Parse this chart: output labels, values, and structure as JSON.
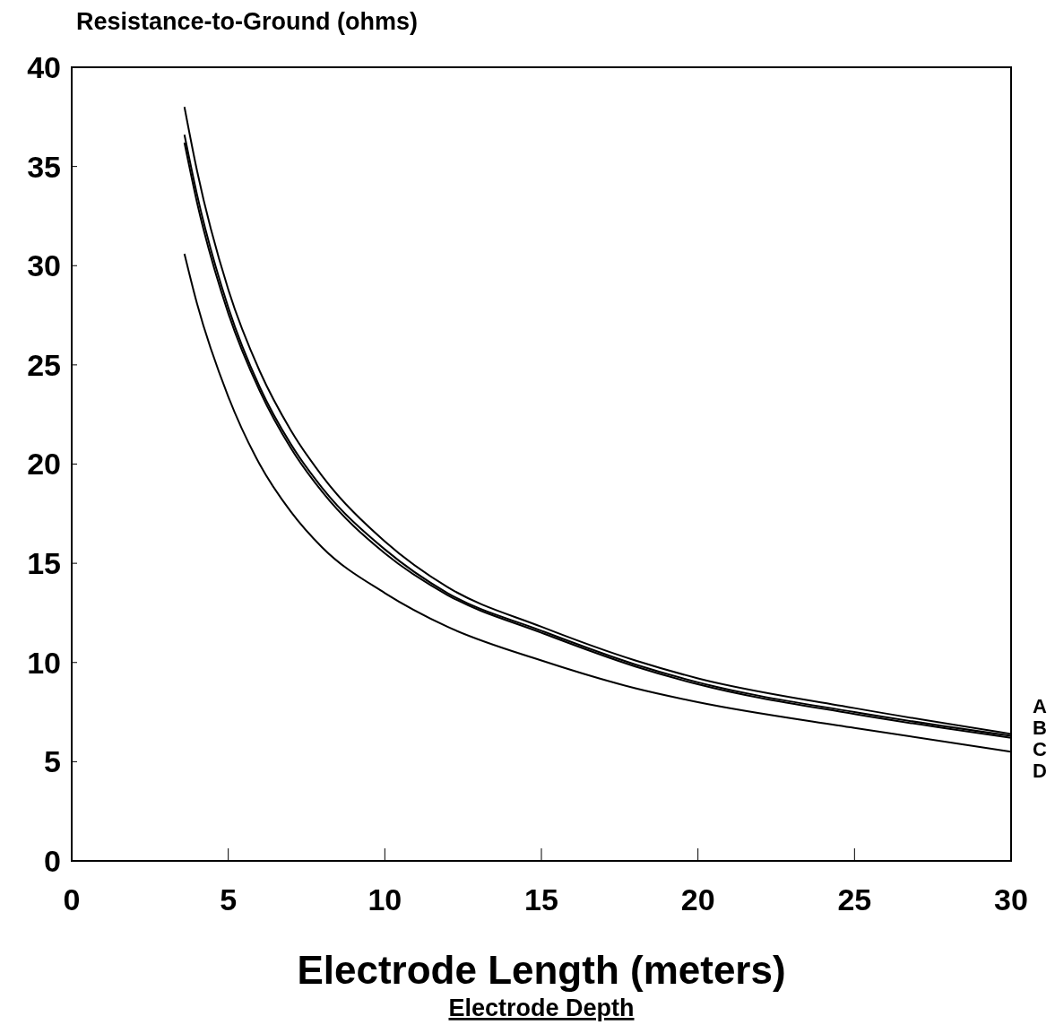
{
  "chart_data": {
    "type": "line",
    "ylabel": "Resistance-to-Ground (ohms)",
    "xlabel": "Electrode Length (meters)",
    "annotations": [
      "Electrode Depth"
    ],
    "x": [
      3.6,
      4,
      5,
      6,
      7,
      8,
      10,
      12,
      15,
      18,
      20,
      25,
      30
    ],
    "series": [
      {
        "name": "A",
        "color": "#000000",
        "values": [
          38,
          34.8,
          28.8,
          24.7,
          21.7,
          19.4,
          16.1,
          13.8,
          11.8,
          10.1,
          9.2,
          7.7,
          6.4
        ]
      },
      {
        "name": "B",
        "color": "#000000",
        "values": [
          36.6,
          33.6,
          27.9,
          23.9,
          21.0,
          18.8,
          15.7,
          13.5,
          11.6,
          9.9,
          9.0,
          7.5,
          6.3
        ]
      },
      {
        "name": "C",
        "color": "#000000",
        "values": [
          36.2,
          33.2,
          27.6,
          23.7,
          20.8,
          18.6,
          15.5,
          13.4,
          11.5,
          9.8,
          8.9,
          7.4,
          6.2
        ]
      },
      {
        "name": "D",
        "color": "#000000",
        "values": [
          30.6,
          28.1,
          23.4,
          20.0,
          17.6,
          15.8,
          13.5,
          11.8,
          10.1,
          8.7,
          8.0,
          6.7,
          5.5
        ]
      }
    ],
    "xlim": [
      0,
      30
    ],
    "xticks": [
      0,
      5,
      10,
      15,
      20,
      25,
      30
    ],
    "ylim": [
      0,
      40
    ],
    "yticks": [
      0,
      5,
      10,
      15,
      20,
      25,
      30,
      35,
      40
    ],
    "grid": false,
    "marker": "none",
    "line_style": "solid"
  }
}
